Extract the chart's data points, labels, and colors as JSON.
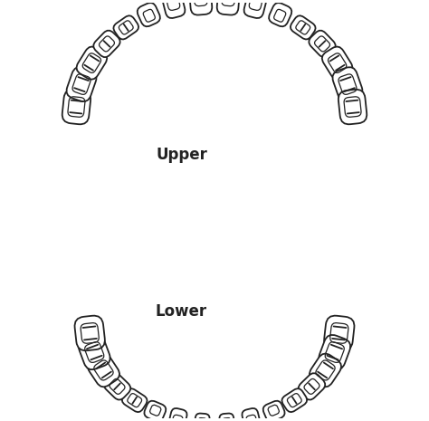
{
  "background_color": "#ffffff",
  "line_color": "#222222",
  "line_width": 1.3,
  "upper_label": "Upper",
  "lower_label": "Lower",
  "label_fontsize": 12,
  "label_fontweight": "bold",
  "fig_width": 4.74,
  "fig_height": 4.65,
  "dpi": 100
}
